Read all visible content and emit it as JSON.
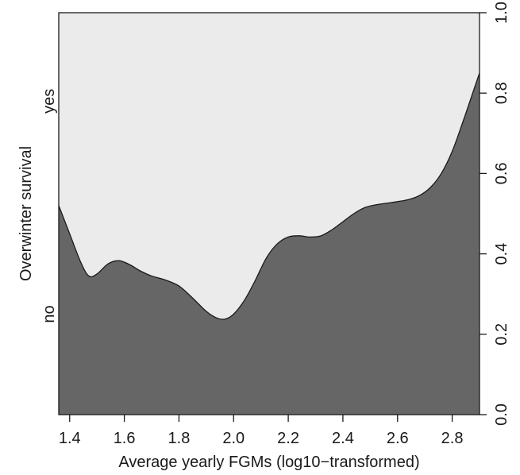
{
  "chart_data": {
    "type": "area",
    "title": "",
    "xlabel": "Average yearly FGMs (log10−transformed)",
    "ylabel": "Overwinter survival",
    "xlim": [
      1.36,
      2.9
    ],
    "ylim": [
      0,
      1
    ],
    "x_ticks": [
      "1.4",
      "1.6",
      "1.8",
      "2.0",
      "2.2",
      "2.4",
      "2.6",
      "2.8"
    ],
    "y_ticks": [
      "0.0",
      "0.2",
      "0.4",
      "0.6",
      "0.8",
      "1.0"
    ],
    "category_labels": [
      "no",
      "yes"
    ],
    "grid": false,
    "colors": {
      "lower": "#666666",
      "upper": "#ebebeb",
      "line": "#1a1a1a"
    },
    "series": [
      {
        "x": [
          1.36,
          1.4,
          1.44,
          1.47,
          1.5,
          1.54,
          1.58,
          1.62,
          1.66,
          1.7,
          1.75,
          1.8,
          1.85,
          1.9,
          1.94,
          1.97,
          2.0,
          2.04,
          2.08,
          2.12,
          2.16,
          2.2,
          2.24,
          2.28,
          2.32,
          2.36,
          2.4,
          2.44,
          2.48,
          2.52,
          2.56,
          2.6,
          2.64,
          2.68,
          2.72,
          2.76,
          2.8,
          2.84,
          2.88,
          2.9
        ],
        "values": [
          0.52,
          0.45,
          0.38,
          0.345,
          0.35,
          0.375,
          0.383,
          0.373,
          0.357,
          0.345,
          0.335,
          0.32,
          0.29,
          0.257,
          0.24,
          0.238,
          0.25,
          0.285,
          0.335,
          0.39,
          0.425,
          0.442,
          0.445,
          0.442,
          0.445,
          0.46,
          0.48,
          0.5,
          0.515,
          0.522,
          0.526,
          0.53,
          0.535,
          0.545,
          0.565,
          0.6,
          0.655,
          0.73,
          0.81,
          0.85
        ]
      }
    ]
  }
}
